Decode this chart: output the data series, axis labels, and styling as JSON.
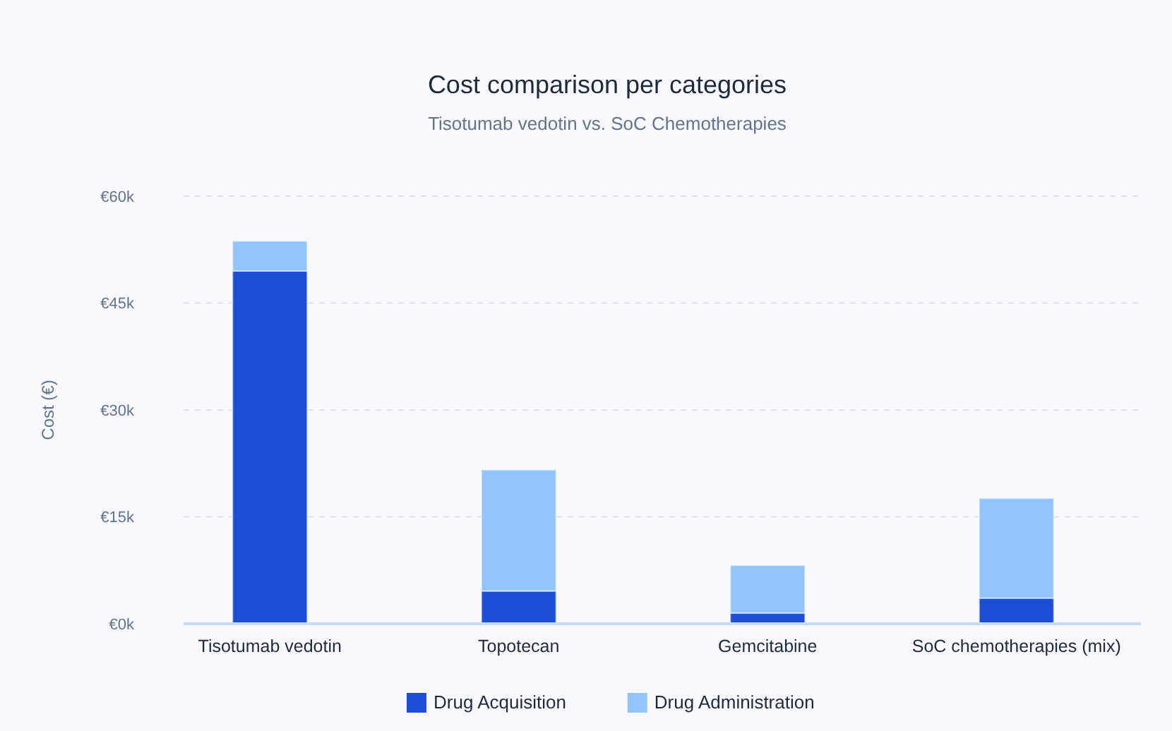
{
  "chart_data": {
    "type": "bar",
    "title": "Cost comparison per categories",
    "subtitle": "Tisotumab vedotin vs. SoC Chemotherapies",
    "ylabel": "Cost (€)",
    "categories": [
      "Tisotumab vedotin",
      "Topotecan",
      "Gemcitabine",
      "SoC chemotherapies (mix)"
    ],
    "series": [
      {
        "name": "Drug Acquisition",
        "color": "#1d4ed8",
        "values": [
          49.5,
          4.6,
          1.5,
          3.6
        ]
      },
      {
        "name": "Drug Administration",
        "color": "#93c5fd",
        "values": [
          4.2,
          17.0,
          6.7,
          14.0
        ]
      }
    ],
    "stacked": true,
    "ylim": [
      0,
      60
    ],
    "yticks": [
      {
        "value": 0,
        "label": "€0k"
      },
      {
        "value": 15,
        "label": "€15k"
      },
      {
        "value": 30,
        "label": "€30k"
      },
      {
        "value": 45,
        "label": "€45k"
      },
      {
        "value": 60,
        "label": "€60k"
      }
    ],
    "grid": "y",
    "legend": "bottom"
  }
}
